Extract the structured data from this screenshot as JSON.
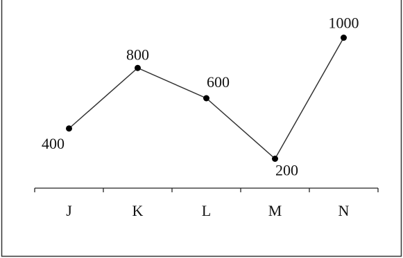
{
  "chart_data": {
    "type": "line",
    "title": "",
    "xlabel": "",
    "ylabel": "",
    "categories": [
      "J",
      "K",
      "L",
      "M",
      "N"
    ],
    "series": [
      {
        "values": [
          400,
          800,
          600,
          200,
          1000
        ]
      }
    ],
    "data_labels": [
      "400",
      "800",
      "600",
      "200",
      "1000"
    ],
    "y_axis_shown": false,
    "grid": false,
    "legend": "none",
    "colors": {
      "line": "#333333",
      "marker": "#000000",
      "axis": "#222222",
      "frame": "#333333"
    }
  }
}
